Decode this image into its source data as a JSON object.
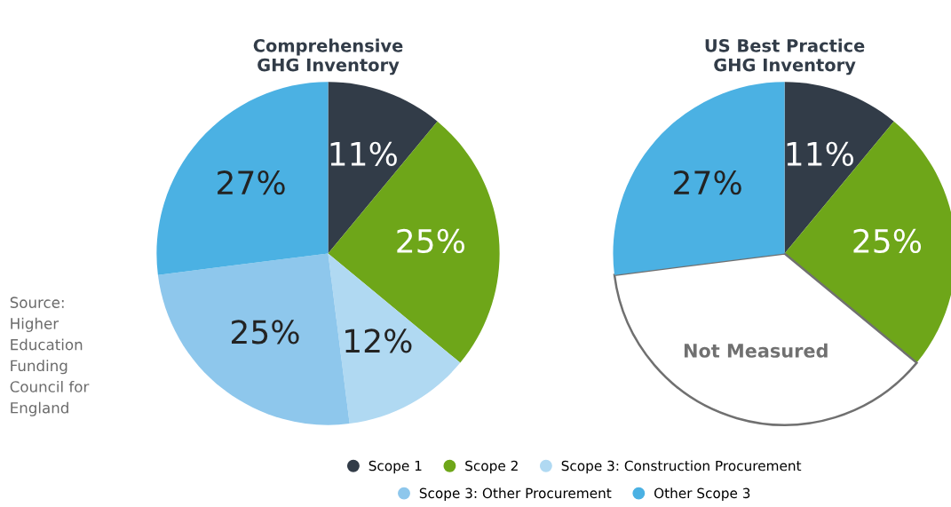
{
  "chart_data": [
    {
      "type": "pie",
      "title": "Comprehensive\nGHG Inventory",
      "categories": [
        "Scope 1",
        "Scope 2",
        "Scope 3: Construction Procurement",
        "Scope 3: Other Procurement",
        "Other Scope 3"
      ],
      "values": [
        11,
        25,
        12,
        25,
        27
      ],
      "colors": [
        "#323c48",
        "#6ea619",
        "#b0d9f2",
        "#8ec7ec",
        "#4bb1e3"
      ],
      "value_labels": [
        "11%",
        "25%",
        "12%",
        "25%",
        "27%"
      ],
      "legend": "bottom",
      "annotations": [
        "Source:\nHigher\nEducation\nFunding\nCouncil for\nEngland"
      ]
    },
    {
      "type": "pie",
      "title": "US Best Practice\nGHG Inventory",
      "categories": [
        null,
        null,
        "Not Measured",
        null
      ],
      "values": [
        11,
        25,
        37,
        27
      ],
      "colors": [
        "#323c48",
        "#6ea619",
        "#ffffff",
        "#4bb1e3"
      ],
      "value_labels": [
        "11%",
        "25%",
        null,
        "27%"
      ]
    }
  ]
}
